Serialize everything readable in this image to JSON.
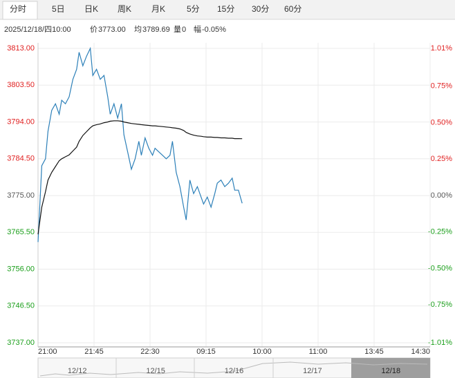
{
  "tabs": [
    "分时",
    "5日",
    "日K",
    "周K",
    "月K",
    "5分",
    "15分",
    "30分",
    "60分"
  ],
  "info": [
    "2025/12/18/四10:00",
    "价",
    "3773.00",
    "均",
    "3789.69",
    "量",
    "0",
    "幅",
    "-0.05%"
  ],
  "chart_data": {
    "type": "line",
    "x": [
      0,
      3,
      6,
      8,
      11,
      14,
      17,
      19,
      22,
      25,
      28,
      31,
      33,
      36,
      39,
      42,
      44,
      47,
      50,
      53,
      56,
      58,
      61,
      64,
      67,
      69,
      72,
      75,
      78,
      81,
      83,
      86,
      89,
      92,
      94,
      97,
      100,
      103,
      106,
      108,
      111,
      114,
      117,
      119,
      122,
      125,
      128,
      131,
      133,
      136,
      139,
      142,
      144,
      147,
      150,
      153,
      156,
      158,
      161,
      164
    ],
    "series": [
      {
        "color": "#2b7fb8",
        "values": [
          3763,
          3782.7,
          3784.5,
          3791.6,
          3797,
          3798.7,
          3796,
          3799.6,
          3798.7,
          3800.5,
          3805,
          3807.6,
          3812,
          3808.5,
          3811,
          3813,
          3806,
          3807.6,
          3805,
          3806,
          3800.5,
          3796,
          3798.7,
          3795,
          3798.7,
          3790.7,
          3786.3,
          3781.8,
          3784.5,
          3789,
          3785.4,
          3789.9,
          3787.2,
          3785.4,
          3787.2,
          3786.3,
          3785.4,
          3784.5,
          3785.4,
          3789,
          3781,
          3777.3,
          3772,
          3768.7,
          3779,
          3775.5,
          3777.3,
          3774.6,
          3772.8,
          3774.6,
          3772,
          3775.5,
          3778.2,
          3779,
          3777.3,
          3778.2,
          3779.5,
          3776.4,
          3776.4,
          3773
        ]
      },
      {
        "color": "#111111",
        "values": [
          3765,
          3772,
          3776,
          3779,
          3781,
          3782.5,
          3784,
          3784.5,
          3785,
          3785.5,
          3786.5,
          3787.5,
          3789,
          3790.5,
          3791.5,
          3792.5,
          3793,
          3793.3,
          3793.5,
          3793.8,
          3794,
          3794.2,
          3794.3,
          3794.3,
          3794.2,
          3794,
          3793.8,
          3793.6,
          3793.5,
          3793.4,
          3793.3,
          3793.2,
          3793.1,
          3793,
          3793,
          3792.9,
          3792.8,
          3792.7,
          3792.6,
          3792.5,
          3792.4,
          3792.2,
          3791.8,
          3791.3,
          3790.9,
          3790.6,
          3790.4,
          3790.3,
          3790.2,
          3790.1,
          3790.1,
          3790,
          3790,
          3789.9,
          3789.9,
          3789.8,
          3789.8,
          3789.7,
          3789.7,
          3789.69
        ]
      }
    ],
    "xlim": [
      0,
      315
    ],
    "xticks": [
      {
        "value": 0,
        "label": "21:00"
      },
      {
        "value": 45,
        "label": "21:45"
      },
      {
        "value": 90,
        "label": "22:30"
      },
      {
        "value": 135,
        "label": "09:15"
      },
      {
        "value": 180,
        "label": "10:00"
      },
      {
        "value": 225,
        "label": "11:00"
      },
      {
        "value": 270,
        "label": "13:45"
      },
      {
        "value": 315,
        "label": "14:30"
      }
    ],
    "ylim": [
      3737,
      3813
    ],
    "yticks": [
      {
        "value": 3813,
        "label": "3813.00"
      },
      {
        "value": 3803.5,
        "label": "3803.50"
      },
      {
        "value": 3794,
        "label": "3794.00"
      },
      {
        "value": 3784.5,
        "label": "3784.50"
      },
      {
        "value": 3775,
        "label": "3775.00"
      },
      {
        "value": 3765.5,
        "label": "3765.50"
      },
      {
        "value": 3756,
        "label": "3756.00"
      },
      {
        "value": 3746.5,
        "label": "3746.50"
      },
      {
        "value": 3737,
        "label": "3737.00"
      }
    ],
    "y2lim": [
      -1.01,
      1.01
    ],
    "y2ticks": [
      {
        "value": 1.01,
        "label": "1.01%"
      },
      {
        "value": 0.75,
        "label": "0.75%"
      },
      {
        "value": 0.5,
        "label": "0.50%"
      },
      {
        "value": 0.25,
        "label": "0.25%"
      },
      {
        "value": 0,
        "label": "0.00%"
      },
      {
        "value": -0.25,
        "label": "-0.25%"
      },
      {
        "value": -0.5,
        "label": "-0.50%"
      },
      {
        "value": -0.75,
        "label": "-0.75%"
      },
      {
        "value": -1.01,
        "label": "-1.01%"
      }
    ],
    "grid": true,
    "up_color": "#e02020",
    "down_color": "#1a9e1a",
    "flat_color": "#555555"
  },
  "navigator": [
    "12/12",
    "12/15",
    "12/16",
    "12/17",
    "12/18"
  ]
}
